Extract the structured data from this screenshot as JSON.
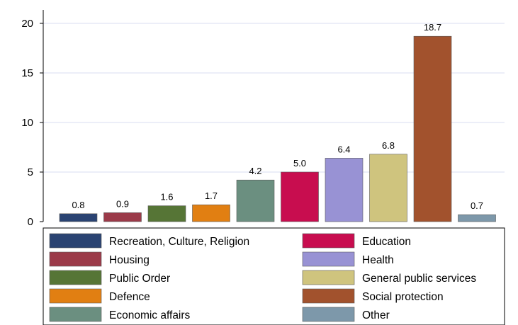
{
  "chart_data": {
    "type": "bar",
    "ylim": [
      0,
      20
    ],
    "yticks": [
      "0",
      "5",
      "10",
      "15",
      "20"
    ],
    "grid": true,
    "legend_placement": "bottom",
    "title": "",
    "xlabel": "",
    "ylabel": "",
    "bars": [
      {
        "name": "Recreation, Culture, Religion",
        "value": 0.8,
        "label": "0.8",
        "color": "#2a4372"
      },
      {
        "name": "Housing",
        "value": 0.9,
        "label": "0.9",
        "color": "#9b3a49"
      },
      {
        "name": "Public Order",
        "value": 1.6,
        "label": "1.6",
        "color": "#567536"
      },
      {
        "name": "Defence",
        "value": 1.7,
        "label": "1.7",
        "color": "#e17f12"
      },
      {
        "name": "Economic affairs",
        "value": 4.2,
        "label": "4.2",
        "color": "#6b8f80"
      },
      {
        "name": "Education",
        "value": 5.0,
        "label": "5.0",
        "color": "#c80d4f"
      },
      {
        "name": "Health",
        "value": 6.4,
        "label": "6.4",
        "color": "#9892d4"
      },
      {
        "name": "General public services",
        "value": 6.8,
        "label": "6.8",
        "color": "#cfc47e"
      },
      {
        "name": "Social protection",
        "value": 18.7,
        "label": "18.7",
        "color": "#a2522d"
      },
      {
        "name": "Other",
        "value": 0.7,
        "label": "0.7",
        "color": "#7d98aa"
      }
    ]
  }
}
